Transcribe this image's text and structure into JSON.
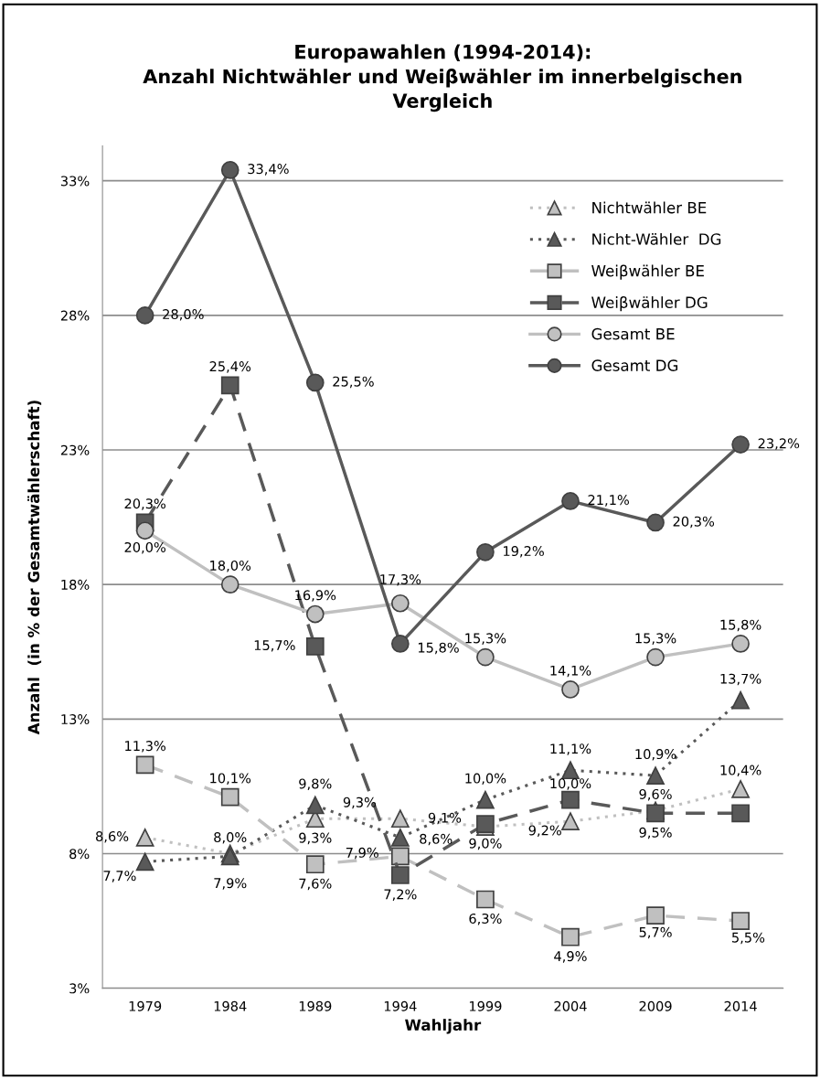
{
  "chart_data": {
    "type": "line",
    "title": "Europawahlen (1994-2014):\nAnzahl Nichtwähler und Weiβwähler im innerbelgischen\nVergleich",
    "xlabel": "Wahljahr",
    "ylabel": "Anzahl  (in % der Gesamtwählerschaft)",
    "categories": [
      "1979",
      "1984",
      "1989",
      "1994",
      "1999",
      "2004",
      "2009",
      "2014"
    ],
    "ylim": [
      3,
      34.3
    ],
    "yticks": [
      {
        "value": 3,
        "label": "3%"
      },
      {
        "value": 8,
        "label": "8%"
      },
      {
        "value": 13,
        "label": "13%"
      },
      {
        "value": 18,
        "label": "18%"
      },
      {
        "value": 23,
        "label": "23%"
      },
      {
        "value": 28,
        "label": "28%"
      },
      {
        "value": 33,
        "label": "33%"
      }
    ],
    "grid": "y",
    "legend": "top right",
    "series": [
      {
        "name": "Nichtwähler BE",
        "color": "#c0c0c0",
        "marker": "triangle",
        "line_style": "dotted",
        "values": [
          8.6,
          8.0,
          9.3,
          9.3,
          9.0,
          9.2,
          9.6,
          10.4
        ],
        "value_labels": [
          "8,6%",
          "8,0%",
          "9,3%",
          "9,3%",
          "9,0%",
          "9,2%",
          "9,6%",
          "10,4%"
        ]
      },
      {
        "name": "Nicht-Wähler  DG",
        "color": "#595959",
        "marker": "triangle",
        "line_style": "dotted",
        "values": [
          7.7,
          7.9,
          9.8,
          8.6,
          10.0,
          11.1,
          10.9,
          13.7
        ],
        "value_labels": [
          "7,7%",
          "7,9%",
          "9,8%",
          "8,6%",
          "10,0%",
          "11,1%",
          "10,9%",
          "13,7%"
        ]
      },
      {
        "name": "Weiβwähler BE",
        "color": "#c0c0c0",
        "marker": "square",
        "line_style": "dashed",
        "values": [
          11.3,
          10.1,
          7.6,
          7.9,
          6.3,
          4.9,
          5.7,
          5.5
        ],
        "value_labels": [
          "11,3%",
          "10,1%",
          "7,6%",
          "7,9%",
          "6,3%",
          "4,9%",
          "5,7%",
          "5,5%"
        ]
      },
      {
        "name": "Weiβwähler DG",
        "color": "#595959",
        "marker": "square",
        "line_style": "dashed",
        "values": [
          20.3,
          25.4,
          15.7,
          7.2,
          9.1,
          10.0,
          9.5,
          9.5
        ],
        "value_labels": [
          "20,3%",
          "25,4%",
          "15,7%",
          "7,2%",
          "9,1%",
          "10,0%",
          "9,5%",
          null
        ]
      },
      {
        "name": "Gesamt BE",
        "color": "#c0c0c0",
        "marker": "circle",
        "line_style": "solid",
        "values": [
          20.0,
          18.0,
          16.9,
          17.3,
          15.3,
          14.1,
          15.3,
          15.8
        ],
        "value_labels": [
          "20,0%",
          "18,0%",
          "16,9%",
          "17,3%",
          "15,3%",
          "14,1%",
          "15,3%",
          "15,8%"
        ]
      },
      {
        "name": "Gesamt DG",
        "color": "#595959",
        "marker": "circle",
        "line_style": "solid",
        "values": [
          28.0,
          33.4,
          25.5,
          15.8,
          19.2,
          21.1,
          20.3,
          23.2
        ],
        "value_labels": [
          "28,0%",
          "33,4%",
          "25,5%",
          "15,8%",
          "19,2%",
          "21,1%",
          "20,3%",
          "23,2%"
        ]
      }
    ]
  }
}
